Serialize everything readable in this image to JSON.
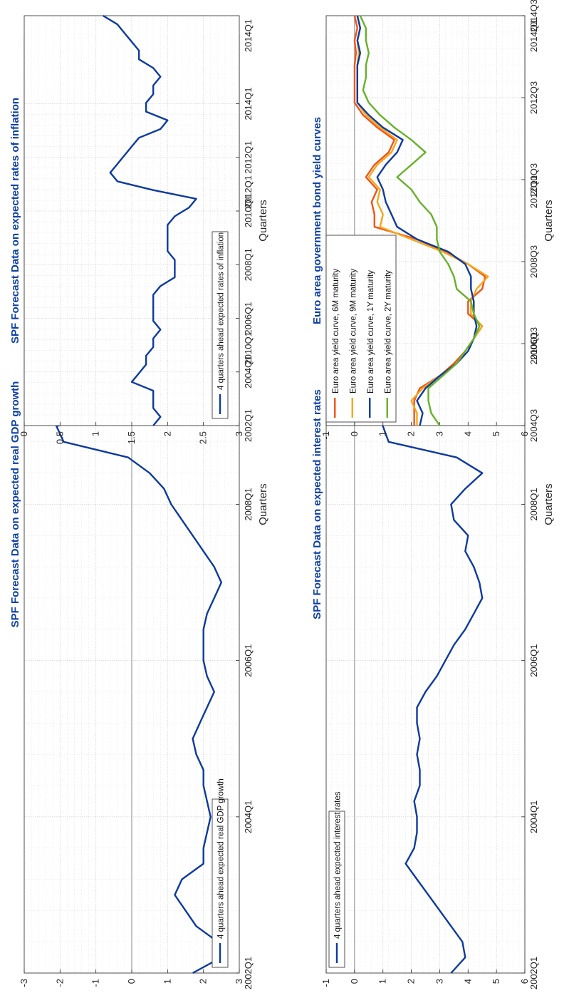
{
  "chart_data": [
    {
      "id": "gdp",
      "type": "line",
      "title": "SPF Forecast Data on expected real GDP growth",
      "xlabel": "Quarters",
      "ylabel": "",
      "ylim": [
        -3,
        3
      ],
      "yticks": [
        "-3",
        "-2",
        "-1",
        "0",
        "1",
        "2",
        "3"
      ],
      "xticks": [
        "2002Q1",
        "2004Q1",
        "2006Q1",
        "2008Q1",
        "2010Q1",
        "2012Q1",
        "2014Q1"
      ],
      "grid": true,
      "legend_position": "bottom-right",
      "series": [
        {
          "name": "4 quarters ahead expected real GDP growth",
          "color": "#0d3a9e",
          "values": [
            1.7,
            2.5,
            2.4,
            1.8,
            1.5,
            1.2,
            1.4,
            2.0,
            2.0,
            2.1,
            2.2,
            2.1,
            2.0,
            2.0,
            1.8,
            1.7,
            1.9,
            2.1,
            2.3,
            2.1,
            2.0,
            2.0,
            2.0,
            2.1,
            2.3,
            2.5,
            2.3,
            2.0,
            1.7,
            1.4,
            1.1,
            0.9,
            0.5,
            -0.1,
            -1.9,
            -2.1,
            -0.6,
            1.2,
            1.3,
            1.6,
            1.7,
            1.7,
            1.6,
            1.6,
            1.8,
            1.7,
            1.5,
            0.9,
            0.5,
            0.1,
            0.3,
            0.3,
            0.3,
            0.3,
            0.6,
            0.8,
            1.1,
            1.3,
            1.4,
            1.4,
            1.5
          ]
        }
      ]
    },
    {
      "id": "inflation",
      "type": "line",
      "title": "SPF Forecast Data on expected rates of inflation",
      "xlabel": "Quarters",
      "ylabel": "",
      "ylim": [
        0,
        3
      ],
      "yticks": [
        "0",
        "0.5",
        "1",
        "1.5",
        "2",
        "2.5",
        "3"
      ],
      "xticks": [
        "2002Q1",
        "2004Q1",
        "2006Q1",
        "2008Q1",
        "2010Q1",
        "2012Q1",
        "2014Q1"
      ],
      "grid": true,
      "legend_position": "bottom-right",
      "series": [
        {
          "name": "4 quarters ahead expected rates of inflation",
          "color": "#0d3a9e",
          "values": [
            1.8,
            1.9,
            1.8,
            1.8,
            1.8,
            1.5,
            1.6,
            1.7,
            1.7,
            1.8,
            1.8,
            1.9,
            1.8,
            1.8,
            1.8,
            1.8,
            1.9,
            2.1,
            2.1,
            2.1,
            2.0,
            2.0,
            2.0,
            2.0,
            2.1,
            2.3,
            2.4,
            1.8,
            1.3,
            1.2,
            1.3,
            1.4,
            1.5,
            1.6,
            1.9,
            2.0,
            1.7,
            1.7,
            1.8,
            1.8,
            1.9,
            1.8,
            1.6,
            1.6,
            1.5,
            1.4,
            1.3,
            1.1
          ]
        }
      ]
    },
    {
      "id": "interest",
      "type": "line",
      "title": "SPF Forecast Data on expected interest rates",
      "xlabel": "Quarters",
      "ylabel": "",
      "ylim": [
        -1,
        6
      ],
      "yticks": [
        "-1",
        "0",
        "1",
        "2",
        "3",
        "4",
        "5",
        "6"
      ],
      "xticks": [
        "2002Q1",
        "2004Q1",
        "2006Q1",
        "2008Q1",
        "2010Q1",
        "2012Q1",
        "2014Q1"
      ],
      "grid": true,
      "legend_position": "top-right",
      "series": [
        {
          "name": "4 quarters ahead expected interest rates",
          "color": "#0d3a9e",
          "values": [
            3.4,
            3.9,
            3.8,
            3.4,
            3.0,
            2.6,
            2.2,
            1.8,
            2.1,
            2.2,
            2.2,
            2.1,
            2.3,
            2.3,
            2.2,
            2.3,
            2.2,
            2.2,
            2.5,
            2.9,
            3.2,
            3.5,
            3.9,
            4.2,
            4.5,
            4.4,
            4.2,
            3.9,
            4.0,
            3.5,
            3.4,
            3.9,
            4.5,
            3.6,
            1.2,
            1.0,
            1.2,
            1.3,
            1.3,
            1.3,
            1.1,
            1.1,
            1.1,
            1.2,
            1.8,
            2.0,
            1.3,
            0.9,
            0.7,
            0.6,
            0.6,
            0.7,
            0.6,
            0.6,
            0.5,
            0.4,
            0.3,
            0.3,
            0.2,
            0.1,
            0.05
          ]
        }
      ]
    },
    {
      "id": "yield",
      "type": "line",
      "title": "Euro area government bond yield curves",
      "xlabel": "Quarters",
      "ylabel": "",
      "ylim": [
        -1,
        6
      ],
      "yticks": [
        "-1",
        "0",
        "1",
        "2",
        "3",
        "4",
        "5",
        "6"
      ],
      "xticks": [
        "2004Q3",
        "2006Q3",
        "2008Q3",
        "2010Q3",
        "2012Q3",
        "2014Q3"
      ],
      "grid": true,
      "legend_position": "top-right",
      "series": [
        {
          "name": "Euro area yield curve, 6M maturity",
          "color": "#f0541a",
          "values": [
            2.1,
            2.1,
            2.1,
            2.3,
            3.0,
            3.5,
            3.9,
            4.2,
            4.5,
            4.0,
            4.0,
            4.5,
            4.6,
            4.0,
            3.2,
            2.2,
            0.7,
            0.7,
            0.6,
            0.8,
            0.4,
            0.7,
            1.2,
            1.4,
            0.8,
            0.3,
            0.0,
            0.0,
            0.0,
            0.0,
            0.05,
            0.0,
            0.1,
            0.0
          ]
        },
        {
          "name": "Euro area yield curve, 9M maturity",
          "color": "#f4a81c",
          "values": [
            2.2,
            2.2,
            2.0,
            2.4,
            3.0,
            3.6,
            3.9,
            4.2,
            4.5,
            4.1,
            4.1,
            4.3,
            4.7,
            4.0,
            3.1,
            2.0,
            0.9,
            1.0,
            0.8,
            0.9,
            0.5,
            0.8,
            1.3,
            1.5,
            0.9,
            0.4,
            0.1,
            0.1,
            0.1,
            0.1,
            0.15,
            0.1,
            0.2,
            0.1
          ]
        },
        {
          "name": "Euro area yield curve, 1Y maturity",
          "color": "#0d3a9e",
          "values": [
            2.3,
            2.4,
            2.2,
            2.5,
            3.0,
            3.6,
            4.0,
            4.2,
            4.3,
            4.2,
            4.2,
            4.1,
            4.1,
            3.9,
            3.3,
            2.2,
            1.5,
            1.3,
            1.1,
            1.0,
            0.8,
            1.1,
            1.5,
            1.7,
            1.0,
            0.5,
            0.1,
            0.1,
            0.1,
            0.1,
            0.2,
            0.1,
            0.2,
            0.1
          ]
        },
        {
          "name": "Euro area yield curve, 2Y maturity",
          "color": "#66b22a",
          "values": [
            3.0,
            2.7,
            2.6,
            2.6,
            3.1,
            3.6,
            3.9,
            4.2,
            4.4,
            4.2,
            4.1,
            3.6,
            3.5,
            3.3,
            3.0,
            2.9,
            2.9,
            2.7,
            2.3,
            2.0,
            1.5,
            2.0,
            2.5,
            2.0,
            1.4,
            0.9,
            0.5,
            0.3,
            0.4,
            0.4,
            0.5,
            0.4,
            0.4,
            0.2
          ]
        }
      ]
    }
  ]
}
